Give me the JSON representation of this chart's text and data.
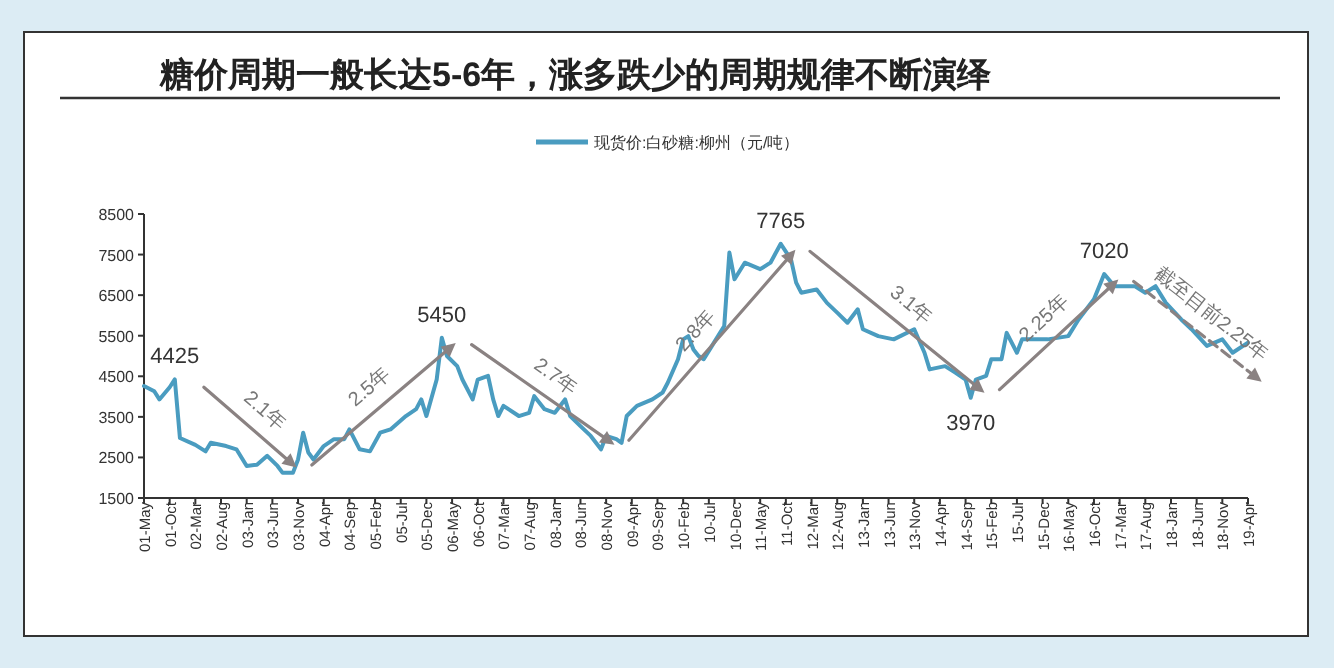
{
  "chart_data": {
    "type": "line",
    "title": "糖价周期一般长达5-6年，涨多跌少的周期规律不断演绎",
    "legend": "top",
    "xlim": [
      "2001-05",
      "2019-04"
    ],
    "xticks": [
      {
        "value": "2001-05",
        "label": "01-May"
      },
      {
        "value": "2001-10",
        "label": "01-Oct"
      },
      {
        "value": "2002-03",
        "label": "02-Mar"
      },
      {
        "value": "2002-08",
        "label": "02-Aug"
      },
      {
        "value": "2003-01",
        "label": "03-Jan"
      },
      {
        "value": "2003-06",
        "label": "03-Jun"
      },
      {
        "value": "2003-11",
        "label": "03-Nov"
      },
      {
        "value": "2004-04",
        "label": "04-Apr"
      },
      {
        "value": "2004-09",
        "label": "04-Sep"
      },
      {
        "value": "2005-02",
        "label": "05-Feb"
      },
      {
        "value": "2005-07",
        "label": "05-Jul"
      },
      {
        "value": "2005-12",
        "label": "05-Dec"
      },
      {
        "value": "2006-05",
        "label": "06-May"
      },
      {
        "value": "2006-10",
        "label": "06-Oct"
      },
      {
        "value": "2007-03",
        "label": "07-Mar"
      },
      {
        "value": "2007-08",
        "label": "07-Aug"
      },
      {
        "value": "2008-01",
        "label": "08-Jan"
      },
      {
        "value": "2008-06",
        "label": "08-Jun"
      },
      {
        "value": "2008-11",
        "label": "08-Nov"
      },
      {
        "value": "2009-04",
        "label": "09-Apr"
      },
      {
        "value": "2009-09",
        "label": "09-Sep"
      },
      {
        "value": "2010-02",
        "label": "10-Feb"
      },
      {
        "value": "2010-07",
        "label": "10-Jul"
      },
      {
        "value": "2010-12",
        "label": "10-Dec"
      },
      {
        "value": "2011-05",
        "label": "11-May"
      },
      {
        "value": "2011-10",
        "label": "11-Oct"
      },
      {
        "value": "2012-03",
        "label": "12-Mar"
      },
      {
        "value": "2012-08",
        "label": "12-Aug"
      },
      {
        "value": "2013-01",
        "label": "13-Jan"
      },
      {
        "value": "2013-06",
        "label": "13-Jun"
      },
      {
        "value": "2013-11",
        "label": "13-Nov"
      },
      {
        "value": "2014-04",
        "label": "14-Apr"
      },
      {
        "value": "2014-09",
        "label": "14-Sep"
      },
      {
        "value": "2015-02",
        "label": "15-Feb"
      },
      {
        "value": "2015-07",
        "label": "15-Jul"
      },
      {
        "value": "2015-12",
        "label": "15-Dec"
      },
      {
        "value": "2016-05",
        "label": "16-May"
      },
      {
        "value": "2016-10",
        "label": "16-Oct"
      },
      {
        "value": "2017-03",
        "label": "17-Mar"
      },
      {
        "value": "2017-08",
        "label": "17-Aug"
      },
      {
        "value": "2018-01",
        "label": "18-Jan"
      },
      {
        "value": "2018-06",
        "label": "18-Jun"
      },
      {
        "value": "2018-11",
        "label": "18-Nov"
      },
      {
        "value": "2019-04",
        "label": "19-Apr"
      }
    ],
    "ylim": [
      1500,
      8500
    ],
    "yticks": [
      1500,
      2500,
      3500,
      4500,
      5500,
      6500,
      7500,
      8500
    ],
    "grid": false,
    "annotations": [
      {
        "text": "4425",
        "x": "2001-11",
        "y": 4425
      },
      "2.1年",
      "2.5年",
      {
        "text": "5450",
        "x": "2006-03",
        "y": 5450
      },
      "2.7年",
      "2.8年",
      {
        "text": "7765",
        "x": "2011-09",
        "y": 7765
      },
      "3.1年",
      {
        "text": "3970",
        "x": "2014-10",
        "y": 3970
      },
      "2.25年",
      {
        "text": "7020",
        "x": "2016-12",
        "y": 7020
      },
      "截至目前2.25年"
    ],
    "series": [
      {
        "name": "现货价:白砂糖:柳州（元/吨）",
        "color": "#4a9cc0",
        "x": [
          "2001-05",
          "2001-07",
          "2001-08",
          "2001-10",
          "2001-11",
          "2001-12",
          "2002-03",
          "2002-05",
          "2002-06",
          "2002-09",
          "2002-11",
          "2003-01",
          "2003-03",
          "2003-05",
          "2003-07",
          "2003-08",
          "2003-10",
          "2003-11",
          "2003-12",
          "2004-01",
          "2004-02",
          "2004-04",
          "2004-06",
          "2004-08",
          "2004-09",
          "2004-11",
          "2005-01",
          "2005-03",
          "2005-05",
          "2005-08",
          "2005-10",
          "2005-11",
          "2005-12",
          "2006-02",
          "2006-03",
          "2006-04",
          "2006-06",
          "2006-07",
          "2006-09",
          "2006-10",
          "2006-12",
          "2007-01",
          "2007-02",
          "2007-03",
          "2007-06",
          "2007-08",
          "2007-09",
          "2007-11",
          "2008-01",
          "2008-03",
          "2008-04",
          "2008-06",
          "2008-08",
          "2008-10",
          "2008-11",
          "2009-01",
          "2009-02",
          "2009-03",
          "2009-05",
          "2009-08",
          "2009-10",
          "2009-11",
          "2010-01",
          "2010-02",
          "2010-03",
          "2010-04",
          "2010-05",
          "2010-06",
          "2010-08",
          "2010-10",
          "2010-11",
          "2010-12",
          "2011-02",
          "2011-05",
          "2011-07",
          "2011-09",
          "2011-11",
          "2011-12",
          "2012-01",
          "2012-04",
          "2012-06",
          "2012-08",
          "2012-10",
          "2012-12",
          "2013-01",
          "2013-04",
          "2013-07",
          "2013-11",
          "2014-01",
          "2014-02",
          "2014-05",
          "2014-07",
          "2014-09",
          "2014-10",
          "2014-11",
          "2015-01",
          "2015-02",
          "2015-04",
          "2015-05",
          "2015-07",
          "2015-08",
          "2015-10",
          "2016-01",
          "2016-05",
          "2016-07",
          "2016-10",
          "2016-12",
          "2017-02",
          "2017-06",
          "2017-08",
          "2017-10",
          "2017-12",
          "2018-03",
          "2018-05",
          "2018-08",
          "2018-11",
          "2019-01",
          "2019-04"
        ],
        "values": [
          4260,
          4130,
          3930,
          4230,
          4425,
          2980,
          2810,
          2650,
          2860,
          2780,
          2700,
          2290,
          2320,
          2540,
          2290,
          2120,
          2120,
          2450,
          3110,
          2620,
          2450,
          2780,
          2950,
          2950,
          3190,
          2700,
          2650,
          3110,
          3190,
          3520,
          3690,
          3930,
          3520,
          4420,
          5450,
          5000,
          4750,
          4420,
          3930,
          4420,
          4510,
          3930,
          3520,
          3770,
          3520,
          3600,
          4010,
          3690,
          3600,
          3930,
          3520,
          3270,
          3030,
          2700,
          3030,
          2950,
          2860,
          3520,
          3770,
          3930,
          4100,
          4340,
          4920,
          5410,
          5490,
          5160,
          5000,
          4920,
          5330,
          5740,
          7550,
          6890,
          7300,
          7140,
          7300,
          7765,
          7380,
          6810,
          6560,
          6640,
          6310,
          6070,
          5820,
          6150,
          5660,
          5490,
          5410,
          5660,
          5080,
          4670,
          4750,
          4590,
          4420,
          3970,
          4420,
          4510,
          4920,
          4920,
          5570,
          5080,
          5410,
          5410,
          5410,
          5490,
          5900,
          6400,
          7020,
          6720,
          6720,
          6560,
          6720,
          6310,
          5900,
          5660,
          5250,
          5410,
          5080,
          5330
        ]
      }
    ]
  }
}
